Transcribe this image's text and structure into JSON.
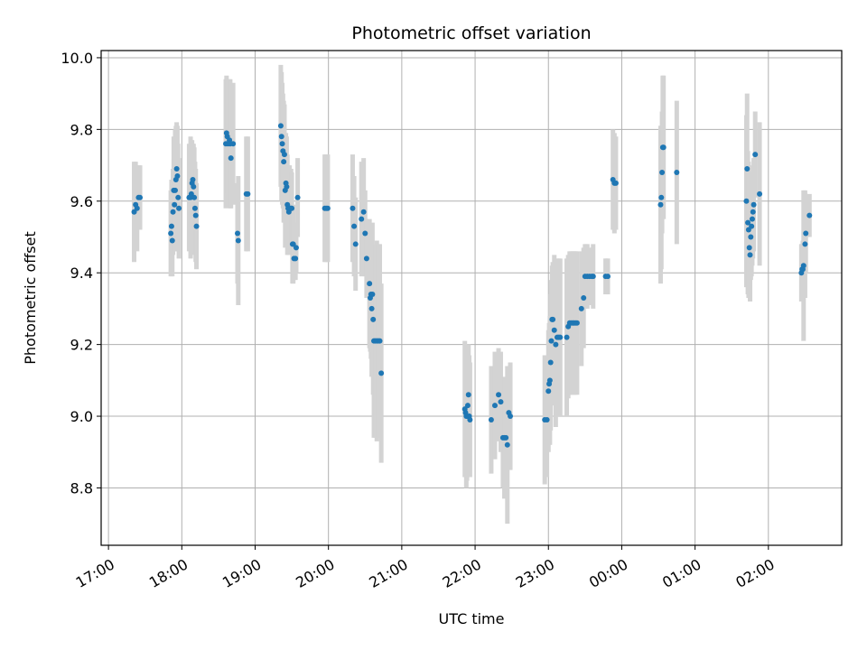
{
  "chart_data": {
    "type": "scatter",
    "title": "Photometric offset variation",
    "xlabel": "UTC time",
    "ylabel": "Photometric offset",
    "xlim_hours": [
      16.9,
      27.0
    ],
    "ylim": [
      8.64,
      10.02
    ],
    "x_ticks": [
      {
        "h": 17,
        "label": "17:00"
      },
      {
        "h": 18,
        "label": "18:00"
      },
      {
        "h": 19,
        "label": "19:00"
      },
      {
        "h": 20,
        "label": "20:00"
      },
      {
        "h": 21,
        "label": "21:00"
      },
      {
        "h": 22,
        "label": "22:00"
      },
      {
        "h": 23,
        "label": "23:00"
      },
      {
        "h": 24,
        "label": "00:00"
      },
      {
        "h": 25,
        "label": "01:00"
      },
      {
        "h": 26,
        "label": "02:00"
      }
    ],
    "y_ticks": [
      {
        "v": 8.8,
        "label": "8.8"
      },
      {
        "v": 9.0,
        "label": "9.0"
      },
      {
        "v": 9.2,
        "label": "9.2"
      },
      {
        "v": 9.4,
        "label": "9.4"
      },
      {
        "v": 9.6,
        "label": "9.6"
      },
      {
        "v": 9.8,
        "label": "9.8"
      },
      {
        "v": 10.0,
        "label": "10.0"
      }
    ],
    "grid": true,
    "point_color": "#1f77b4",
    "errorbar_color": "#d3d3d3",
    "series": [
      {
        "points": [
          {
            "t": 17.35,
            "y": 9.57,
            "e": 0.14
          },
          {
            "t": 17.37,
            "y": 9.59,
            "e": 0.12
          },
          {
            "t": 17.39,
            "y": 9.58,
            "e": 0.12
          },
          {
            "t": 17.41,
            "y": 9.61,
            "e": 0.09
          },
          {
            "t": 17.43,
            "y": 9.61,
            "e": 0.09
          },
          {
            "t": 17.85,
            "y": 9.51,
            "e": 0.12
          },
          {
            "t": 17.86,
            "y": 9.53,
            "e": 0.13
          },
          {
            "t": 17.87,
            "y": 9.49,
            "e": 0.1
          },
          {
            "t": 17.88,
            "y": 9.57,
            "e": 0.12
          },
          {
            "t": 17.89,
            "y": 9.63,
            "e": 0.15
          },
          {
            "t": 17.9,
            "y": 9.59,
            "e": 0.13
          },
          {
            "t": 17.91,
            "y": 9.63,
            "e": 0.17
          },
          {
            "t": 17.92,
            "y": 9.66,
            "e": 0.15
          },
          {
            "t": 17.93,
            "y": 9.69,
            "e": 0.13
          },
          {
            "t": 17.94,
            "y": 9.67,
            "e": 0.14
          },
          {
            "t": 17.95,
            "y": 9.61,
            "e": 0.15
          },
          {
            "t": 17.96,
            "y": 9.58,
            "e": 0.14
          },
          {
            "t": 18.1,
            "y": 9.61,
            "e": 0.15
          },
          {
            "t": 18.12,
            "y": 9.61,
            "e": 0.17
          },
          {
            "t": 18.13,
            "y": 9.62,
            "e": 0.15
          },
          {
            "t": 18.14,
            "y": 9.65,
            "e": 0.12
          },
          {
            "t": 18.15,
            "y": 9.66,
            "e": 0.1
          },
          {
            "t": 18.16,
            "y": 9.64,
            "e": 0.12
          },
          {
            "t": 18.17,
            "y": 9.61,
            "e": 0.14
          },
          {
            "t": 18.18,
            "y": 9.58,
            "e": 0.13
          },
          {
            "t": 18.19,
            "y": 9.56,
            "e": 0.13
          },
          {
            "t": 18.2,
            "y": 9.53,
            "e": 0.12
          },
          {
            "t": 18.6,
            "y": 9.76,
            "e": 0.18
          },
          {
            "t": 18.61,
            "y": 9.79,
            "e": 0.16
          },
          {
            "t": 18.62,
            "y": 9.78,
            "e": 0.16
          },
          {
            "t": 18.63,
            "y": 9.76,
            "e": 0.17
          },
          {
            "t": 18.65,
            "y": 9.77,
            "e": 0.17
          },
          {
            "t": 18.66,
            "y": 9.76,
            "e": 0.18
          },
          {
            "t": 18.67,
            "y": 9.72,
            "e": 0.14
          },
          {
            "t": 18.7,
            "y": 9.76,
            "e": 0.17
          },
          {
            "t": 18.76,
            "y": 9.51,
            "e": 0.14
          },
          {
            "t": 18.77,
            "y": 9.49,
            "e": 0.18
          },
          {
            "t": 18.88,
            "y": 9.62,
            "e": 0.16
          },
          {
            "t": 18.9,
            "y": 9.62,
            "e": 0.16
          },
          {
            "t": 19.35,
            "y": 9.81,
            "e": 0.17
          },
          {
            "t": 19.36,
            "y": 9.78,
            "e": 0.18
          },
          {
            "t": 19.37,
            "y": 9.76,
            "e": 0.17
          },
          {
            "t": 19.38,
            "y": 9.74,
            "e": 0.16
          },
          {
            "t": 19.39,
            "y": 9.71,
            "e": 0.17
          },
          {
            "t": 19.4,
            "y": 9.73,
            "e": 0.14
          },
          {
            "t": 19.41,
            "y": 9.63,
            "e": 0.16
          },
          {
            "t": 19.42,
            "y": 9.65,
            "e": 0.14
          },
          {
            "t": 19.43,
            "y": 9.64,
            "e": 0.14
          },
          {
            "t": 19.44,
            "y": 9.59,
            "e": 0.14
          },
          {
            "t": 19.45,
            "y": 9.58,
            "e": 0.12
          },
          {
            "t": 19.46,
            "y": 9.57,
            "e": 0.12
          },
          {
            "t": 19.47,
            "y": 9.58,
            "e": 0.12
          },
          {
            "t": 19.48,
            "y": 9.58,
            "e": 0.1
          },
          {
            "t": 19.49,
            "y": 9.58,
            "e": 0.11
          },
          {
            "t": 19.5,
            "y": 9.58,
            "e": 0.1
          },
          {
            "t": 19.51,
            "y": 9.48,
            "e": 0.11
          },
          {
            "t": 19.52,
            "y": 9.48,
            "e": 0.11
          },
          {
            "t": 19.53,
            "y": 9.44,
            "e": 0.06
          },
          {
            "t": 19.55,
            "y": 9.44,
            "e": 0.06
          },
          {
            "t": 19.56,
            "y": 9.47,
            "e": 0.07
          },
          {
            "t": 19.58,
            "y": 9.61,
            "e": 0.11
          },
          {
            "t": 19.95,
            "y": 9.58,
            "e": 0.15
          },
          {
            "t": 19.97,
            "y": 9.58,
            "e": 0.15
          },
          {
            "t": 19.99,
            "y": 9.58,
            "e": 0.15
          },
          {
            "t": 20.33,
            "y": 9.58,
            "e": 0.15
          },
          {
            "t": 20.35,
            "y": 9.53,
            "e": 0.14
          },
          {
            "t": 20.37,
            "y": 9.48,
            "e": 0.13
          },
          {
            "t": 20.45,
            "y": 9.55,
            "e": 0.16
          },
          {
            "t": 20.48,
            "y": 9.57,
            "e": 0.15
          },
          {
            "t": 20.5,
            "y": 9.51,
            "e": 0.12
          },
          {
            "t": 20.52,
            "y": 9.44,
            "e": 0.11
          },
          {
            "t": 20.56,
            "y": 9.37,
            "e": 0.18
          },
          {
            "t": 20.57,
            "y": 9.33,
            "e": 0.15
          },
          {
            "t": 20.58,
            "y": 9.34,
            "e": 0.18
          },
          {
            "t": 20.59,
            "y": 9.3,
            "e": 0.19
          },
          {
            "t": 20.6,
            "y": 9.34,
            "e": 0.2
          },
          {
            "t": 20.61,
            "y": 9.27,
            "e": 0.21
          },
          {
            "t": 20.62,
            "y": 9.21,
            "e": 0.27
          },
          {
            "t": 20.64,
            "y": 9.21,
            "e": 0.27
          },
          {
            "t": 20.66,
            "y": 9.21,
            "e": 0.28
          },
          {
            "t": 20.68,
            "y": 9.21,
            "e": 0.27
          },
          {
            "t": 20.7,
            "y": 9.21,
            "e": 0.27
          },
          {
            "t": 20.72,
            "y": 9.12,
            "e": 0.25
          },
          {
            "t": 21.86,
            "y": 9.02,
            "e": 0.19
          },
          {
            "t": 21.87,
            "y": 9.01,
            "e": 0.17
          },
          {
            "t": 21.88,
            "y": 9.0,
            "e": 0.2
          },
          {
            "t": 21.89,
            "y": 9.0,
            "e": 0.18
          },
          {
            "t": 21.9,
            "y": 9.03,
            "e": 0.17
          },
          {
            "t": 21.91,
            "y": 9.06,
            "e": 0.14
          },
          {
            "t": 21.92,
            "y": 9.0,
            "e": 0.17
          },
          {
            "t": 21.93,
            "y": 8.99,
            "e": 0.16
          },
          {
            "t": 22.22,
            "y": 8.99,
            "e": 0.15
          },
          {
            "t": 22.27,
            "y": 9.03,
            "e": 0.15
          },
          {
            "t": 22.32,
            "y": 9.06,
            "e": 0.13
          },
          {
            "t": 22.35,
            "y": 9.04,
            "e": 0.14
          },
          {
            "t": 22.38,
            "y": 8.94,
            "e": 0.14
          },
          {
            "t": 22.4,
            "y": 8.94,
            "e": 0.17
          },
          {
            "t": 22.42,
            "y": 8.94,
            "e": 0.15
          },
          {
            "t": 22.44,
            "y": 8.92,
            "e": 0.22
          },
          {
            "t": 22.46,
            "y": 9.01,
            "e": 0.11
          },
          {
            "t": 22.48,
            "y": 9.0,
            "e": 0.15
          },
          {
            "t": 22.95,
            "y": 8.99,
            "e": 0.18
          },
          {
            "t": 22.98,
            "y": 8.99,
            "e": 0.16
          },
          {
            "t": 23.0,
            "y": 9.07,
            "e": 0.17
          },
          {
            "t": 23.01,
            "y": 9.09,
            "e": 0.17
          },
          {
            "t": 23.02,
            "y": 9.1,
            "e": 0.18
          },
          {
            "t": 23.03,
            "y": 9.15,
            "e": 0.19
          },
          {
            "t": 23.04,
            "y": 9.21,
            "e": 0.17
          },
          {
            "t": 23.05,
            "y": 9.27,
            "e": 0.15
          },
          {
            "t": 23.06,
            "y": 9.27,
            "e": 0.16
          },
          {
            "t": 23.08,
            "y": 9.24,
            "e": 0.21
          },
          {
            "t": 23.1,
            "y": 9.2,
            "e": 0.23
          },
          {
            "t": 23.12,
            "y": 9.22,
            "e": 0.22
          },
          {
            "t": 23.14,
            "y": 9.22,
            "e": 0.22
          },
          {
            "t": 23.16,
            "y": 9.22,
            "e": 0.22
          },
          {
            "t": 23.25,
            "y": 9.22,
            "e": 0.22
          },
          {
            "t": 23.27,
            "y": 9.25,
            "e": 0.2
          },
          {
            "t": 23.29,
            "y": 9.26,
            "e": 0.2
          },
          {
            "t": 23.31,
            "y": 9.26,
            "e": 0.2
          },
          {
            "t": 23.33,
            "y": 9.26,
            "e": 0.2
          },
          {
            "t": 23.35,
            "y": 9.26,
            "e": 0.2
          },
          {
            "t": 23.37,
            "y": 9.26,
            "e": 0.2
          },
          {
            "t": 23.39,
            "y": 9.26,
            "e": 0.2
          },
          {
            "t": 23.45,
            "y": 9.3,
            "e": 0.16
          },
          {
            "t": 23.48,
            "y": 9.33,
            "e": 0.14
          },
          {
            "t": 23.5,
            "y": 9.39,
            "e": 0.09
          },
          {
            "t": 23.53,
            "y": 9.39,
            "e": 0.09
          },
          {
            "t": 23.56,
            "y": 9.39,
            "e": 0.08
          },
          {
            "t": 23.59,
            "y": 9.39,
            "e": 0.08
          },
          {
            "t": 23.61,
            "y": 9.39,
            "e": 0.09
          },
          {
            "t": 23.78,
            "y": 9.39,
            "e": 0.05
          },
          {
            "t": 23.81,
            "y": 9.39,
            "e": 0.05
          },
          {
            "t": 23.88,
            "y": 9.66,
            "e": 0.14
          },
          {
            "t": 23.9,
            "y": 9.65,
            "e": 0.14
          },
          {
            "t": 23.92,
            "y": 9.65,
            "e": 0.13
          },
          {
            "t": 24.53,
            "y": 9.59,
            "e": 0.22
          },
          {
            "t": 24.54,
            "y": 9.61,
            "e": 0.2
          },
          {
            "t": 24.55,
            "y": 9.68,
            "e": 0.17
          },
          {
            "t": 24.56,
            "y": 9.75,
            "e": 0.2
          },
          {
            "t": 24.57,
            "y": 9.75,
            "e": 0.2
          },
          {
            "t": 24.75,
            "y": 9.68,
            "e": 0.2
          },
          {
            "t": 25.7,
            "y": 9.6,
            "e": 0.24
          },
          {
            "t": 25.71,
            "y": 9.69,
            "e": 0.21
          },
          {
            "t": 25.72,
            "y": 9.54,
            "e": 0.2
          },
          {
            "t": 25.73,
            "y": 9.52,
            "e": 0.19
          },
          {
            "t": 25.74,
            "y": 9.47,
            "e": 0.14
          },
          {
            "t": 25.75,
            "y": 9.45,
            "e": 0.13
          },
          {
            "t": 25.76,
            "y": 9.5,
            "e": 0.12
          },
          {
            "t": 25.77,
            "y": 9.53,
            "e": 0.14
          },
          {
            "t": 25.78,
            "y": 9.55,
            "e": 0.13
          },
          {
            "t": 25.79,
            "y": 9.57,
            "e": 0.13
          },
          {
            "t": 25.8,
            "y": 9.59,
            "e": 0.13
          },
          {
            "t": 25.82,
            "y": 9.73,
            "e": 0.12
          },
          {
            "t": 25.88,
            "y": 9.62,
            "e": 0.2
          },
          {
            "t": 26.45,
            "y": 9.4,
            "e": 0.08
          },
          {
            "t": 26.46,
            "y": 9.41,
            "e": 0.07
          },
          {
            "t": 26.47,
            "y": 9.41,
            "e": 0.08
          },
          {
            "t": 26.48,
            "y": 9.42,
            "e": 0.21
          },
          {
            "t": 26.5,
            "y": 9.48,
            "e": 0.15
          },
          {
            "t": 26.51,
            "y": 9.51,
            "e": 0.11
          },
          {
            "t": 26.56,
            "y": 9.56,
            "e": 0.06
          }
        ]
      }
    ]
  }
}
